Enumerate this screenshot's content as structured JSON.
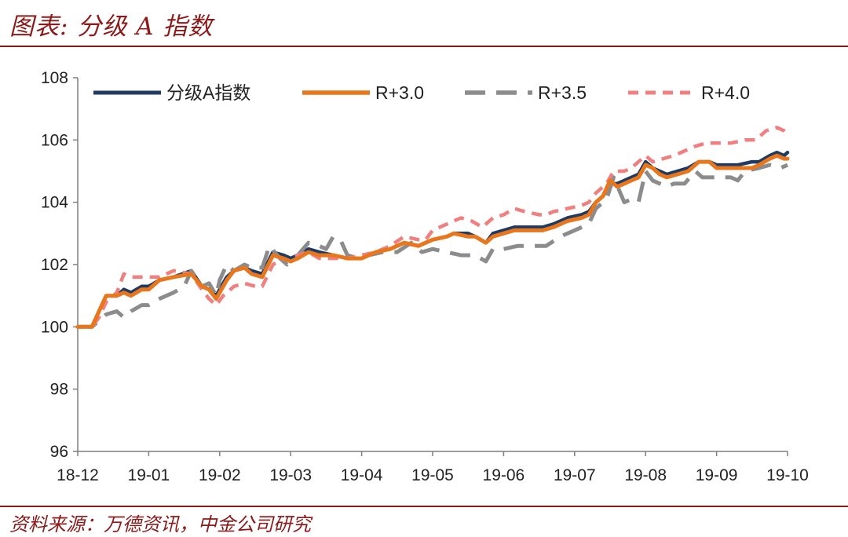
{
  "header": {
    "title": "图表: 分级 A 指数"
  },
  "footer": {
    "source": "资料来源：万德资讯，中金公司研究"
  },
  "chart_data": {
    "type": "line",
    "title": "",
    "xlabel": "",
    "ylabel": "",
    "ylim": [
      96,
      108
    ],
    "yticks": [
      96,
      98,
      100,
      102,
      104,
      106,
      108
    ],
    "xlim": [
      0,
      10
    ],
    "xtick_labels": [
      "18-12",
      "19-01",
      "19-02",
      "19-03",
      "19-04",
      "19-05",
      "19-06",
      "19-07",
      "19-08",
      "19-09",
      "19-10"
    ],
    "legend_position": "top",
    "series": [
      {
        "name": "分级A指数",
        "color": "#1f3b63",
        "style": "solid",
        "points": [
          [
            0,
            100
          ],
          [
            0.2,
            100
          ],
          [
            0.3,
            100.5
          ],
          [
            0.4,
            101
          ],
          [
            0.55,
            101
          ],
          [
            0.65,
            101.2
          ],
          [
            0.75,
            101.1
          ],
          [
            0.9,
            101.3
          ],
          [
            1.0,
            101.3
          ],
          [
            1.15,
            101.5
          ],
          [
            1.35,
            101.6
          ],
          [
            1.6,
            101.8
          ],
          [
            1.75,
            101.3
          ],
          [
            1.85,
            101.2
          ],
          [
            1.95,
            101
          ],
          [
            2.0,
            101.2
          ],
          [
            2.1,
            101.6
          ],
          [
            2.2,
            101.8
          ],
          [
            2.35,
            101.9
          ],
          [
            2.45,
            101.8
          ],
          [
            2.6,
            101.7
          ],
          [
            2.75,
            102.4
          ],
          [
            2.9,
            102.3
          ],
          [
            3.0,
            102.2
          ],
          [
            3.1,
            102.3
          ],
          [
            3.25,
            102.5
          ],
          [
            3.4,
            102.4
          ],
          [
            3.6,
            102.3
          ],
          [
            3.8,
            102.2
          ],
          [
            4.0,
            102.2
          ],
          [
            4.2,
            102.4
          ],
          [
            4.4,
            102.5
          ],
          [
            4.6,
            102.7
          ],
          [
            4.8,
            102.6
          ],
          [
            5.0,
            102.8
          ],
          [
            5.2,
            102.9
          ],
          [
            5.3,
            103.0
          ],
          [
            5.5,
            103.0
          ],
          [
            5.6,
            102.9
          ],
          [
            5.75,
            102.7
          ],
          [
            5.85,
            103.0
          ],
          [
            6.0,
            103.1
          ],
          [
            6.15,
            103.2
          ],
          [
            6.3,
            103.2
          ],
          [
            6.45,
            103.2
          ],
          [
            6.55,
            103.2
          ],
          [
            6.7,
            103.3
          ],
          [
            6.9,
            103.5
          ],
          [
            7.1,
            103.6
          ],
          [
            7.2,
            103.7
          ],
          [
            7.3,
            104.0
          ],
          [
            7.4,
            104.2
          ],
          [
            7.5,
            104.6
          ],
          [
            7.6,
            104.6
          ],
          [
            7.7,
            104.7
          ],
          [
            7.8,
            104.8
          ],
          [
            7.9,
            104.9
          ],
          [
            8.0,
            105.3
          ],
          [
            8.1,
            105.1
          ],
          [
            8.2,
            105.0
          ],
          [
            8.3,
            104.9
          ],
          [
            8.45,
            105.0
          ],
          [
            8.6,
            105.1
          ],
          [
            8.75,
            105.3
          ],
          [
            8.9,
            105.3
          ],
          [
            9.0,
            105.2
          ],
          [
            9.1,
            105.2
          ],
          [
            9.3,
            105.2
          ],
          [
            9.5,
            105.3
          ],
          [
            9.6,
            105.3
          ],
          [
            9.75,
            105.5
          ],
          [
            9.85,
            105.6
          ],
          [
            9.95,
            105.5
          ],
          [
            10.0,
            105.6
          ]
        ]
      },
      {
        "name": "R+3.0",
        "color": "#e8761c",
        "style": "solid",
        "points": [
          [
            0,
            100
          ],
          [
            0.2,
            100
          ],
          [
            0.3,
            100.5
          ],
          [
            0.4,
            101
          ],
          [
            0.55,
            101
          ],
          [
            0.65,
            101.1
          ],
          [
            0.75,
            101
          ],
          [
            0.9,
            101.2
          ],
          [
            1.0,
            101.2
          ],
          [
            1.15,
            101.5
          ],
          [
            1.35,
            101.6
          ],
          [
            1.6,
            101.7
          ],
          [
            1.75,
            101.3
          ],
          [
            1.85,
            101.2
          ],
          [
            1.95,
            100.9
          ],
          [
            2.0,
            101.1
          ],
          [
            2.1,
            101.5
          ],
          [
            2.2,
            101.8
          ],
          [
            2.35,
            101.9
          ],
          [
            2.45,
            101.7
          ],
          [
            2.6,
            101.6
          ],
          [
            2.75,
            102.3
          ],
          [
            2.9,
            102.2
          ],
          [
            3.0,
            102.1
          ],
          [
            3.1,
            102.2
          ],
          [
            3.25,
            102.4
          ],
          [
            3.4,
            102.3
          ],
          [
            3.6,
            102.3
          ],
          [
            3.8,
            102.2
          ],
          [
            4.0,
            102.2
          ],
          [
            4.2,
            102.4
          ],
          [
            4.4,
            102.5
          ],
          [
            4.6,
            102.7
          ],
          [
            4.8,
            102.6
          ],
          [
            5.0,
            102.8
          ],
          [
            5.2,
            102.9
          ],
          [
            5.3,
            103.0
          ],
          [
            5.5,
            102.9
          ],
          [
            5.6,
            102.9
          ],
          [
            5.75,
            102.7
          ],
          [
            5.85,
            102.9
          ],
          [
            6.0,
            103.0
          ],
          [
            6.15,
            103.1
          ],
          [
            6.3,
            103.1
          ],
          [
            6.45,
            103.1
          ],
          [
            6.55,
            103.1
          ],
          [
            6.7,
            103.2
          ],
          [
            6.9,
            103.4
          ],
          [
            7.1,
            103.5
          ],
          [
            7.2,
            103.6
          ],
          [
            7.3,
            104.0
          ],
          [
            7.4,
            104.2
          ],
          [
            7.5,
            104.7
          ],
          [
            7.6,
            104.5
          ],
          [
            7.7,
            104.6
          ],
          [
            7.8,
            104.7
          ],
          [
            7.9,
            104.8
          ],
          [
            8.0,
            105.2
          ],
          [
            8.1,
            105.1
          ],
          [
            8.2,
            104.9
          ],
          [
            8.3,
            104.8
          ],
          [
            8.45,
            104.9
          ],
          [
            8.6,
            105.0
          ],
          [
            8.75,
            105.3
          ],
          [
            8.9,
            105.3
          ],
          [
            9.0,
            105.1
          ],
          [
            9.1,
            105.1
          ],
          [
            9.3,
            105.1
          ],
          [
            9.5,
            105.1
          ],
          [
            9.6,
            105.2
          ],
          [
            9.75,
            105.4
          ],
          [
            9.85,
            105.5
          ],
          [
            9.95,
            105.4
          ],
          [
            10.0,
            105.4
          ]
        ]
      },
      {
        "name": "R+3.5",
        "color": "#8c8c8c",
        "style": "dashed-long",
        "points": [
          [
            0,
            100
          ],
          [
            0.2,
            100
          ],
          [
            0.3,
            100.2
          ],
          [
            0.4,
            100.4
          ],
          [
            0.55,
            100.5
          ],
          [
            0.65,
            100.3
          ],
          [
            0.75,
            100.5
          ],
          [
            0.9,
            100.7
          ],
          [
            1.0,
            100.7
          ],
          [
            1.15,
            100.9
          ],
          [
            1.35,
            101.1
          ],
          [
            1.5,
            101.3
          ],
          [
            1.6,
            101.8
          ],
          [
            1.75,
            101.3
          ],
          [
            1.85,
            101.4
          ],
          [
            1.95,
            101.0
          ],
          [
            2.0,
            101.5
          ],
          [
            2.1,
            102.0
          ],
          [
            2.2,
            101.8
          ],
          [
            2.35,
            102.0
          ],
          [
            2.45,
            101.9
          ],
          [
            2.6,
            101.9
          ],
          [
            2.7,
            102.6
          ],
          [
            2.85,
            102.2
          ],
          [
            2.95,
            102.0
          ],
          [
            3.1,
            102.3
          ],
          [
            3.25,
            102.7
          ],
          [
            3.4,
            102.6
          ],
          [
            3.5,
            102.5
          ],
          [
            3.6,
            102.9
          ],
          [
            3.7,
            102.8
          ],
          [
            3.8,
            102.3
          ],
          [
            3.95,
            102.2
          ],
          [
            4.1,
            102.3
          ],
          [
            4.3,
            102.4
          ],
          [
            4.5,
            102.4
          ],
          [
            4.7,
            102.7
          ],
          [
            4.85,
            102.4
          ],
          [
            5.0,
            102.5
          ],
          [
            5.2,
            102.4
          ],
          [
            5.4,
            102.3
          ],
          [
            5.6,
            102.3
          ],
          [
            5.75,
            102.1
          ],
          [
            5.85,
            102.5
          ],
          [
            6.0,
            102.5
          ],
          [
            6.2,
            102.6
          ],
          [
            6.4,
            102.6
          ],
          [
            6.6,
            102.6
          ],
          [
            6.8,
            102.9
          ],
          [
            7.0,
            103.1
          ],
          [
            7.2,
            103.3
          ],
          [
            7.3,
            103.8
          ],
          [
            7.45,
            104.1
          ],
          [
            7.55,
            104.8
          ],
          [
            7.7,
            104.0
          ],
          [
            7.8,
            104.1
          ],
          [
            7.9,
            104.0
          ],
          [
            8.0,
            105.0
          ],
          [
            8.1,
            104.7
          ],
          [
            8.2,
            104.6
          ],
          [
            8.3,
            104.5
          ],
          [
            8.4,
            104.6
          ],
          [
            8.55,
            104.6
          ],
          [
            8.7,
            105.0
          ],
          [
            8.8,
            104.8
          ],
          [
            9.0,
            104.8
          ],
          [
            9.2,
            104.8
          ],
          [
            9.3,
            104.7
          ],
          [
            9.4,
            105.0
          ],
          [
            9.6,
            105.1
          ],
          [
            9.75,
            105.2
          ],
          [
            9.9,
            105.1
          ],
          [
            10.0,
            105.2
          ]
        ]
      },
      {
        "name": "R+4.0",
        "color": "#f08080",
        "style": "dashed-short",
        "points": [
          [
            0,
            100
          ],
          [
            0.2,
            100
          ],
          [
            0.3,
            100.3
          ],
          [
            0.4,
            100.8
          ],
          [
            0.55,
            101.1
          ],
          [
            0.65,
            101.7
          ],
          [
            0.75,
            101.6
          ],
          [
            0.9,
            101.6
          ],
          [
            1.0,
            101.6
          ],
          [
            1.15,
            101.6
          ],
          [
            1.35,
            101.8
          ],
          [
            1.6,
            101.7
          ],
          [
            1.75,
            101.2
          ],
          [
            1.85,
            100.9
          ],
          [
            1.95,
            100.7
          ],
          [
            2.05,
            101.0
          ],
          [
            2.2,
            101.3
          ],
          [
            2.35,
            101.4
          ],
          [
            2.5,
            101.3
          ],
          [
            2.6,
            101.3
          ],
          [
            2.75,
            102.0
          ],
          [
            2.9,
            102.2
          ],
          [
            3.0,
            102.1
          ],
          [
            3.1,
            102.3
          ],
          [
            3.25,
            102.4
          ],
          [
            3.4,
            102.2
          ],
          [
            3.6,
            102.2
          ],
          [
            3.8,
            102.2
          ],
          [
            4.0,
            102.3
          ],
          [
            4.2,
            102.4
          ],
          [
            4.4,
            102.6
          ],
          [
            4.6,
            102.9
          ],
          [
            4.8,
            102.8
          ],
          [
            4.9,
            102.8
          ],
          [
            5.0,
            103.1
          ],
          [
            5.2,
            103.3
          ],
          [
            5.4,
            103.5
          ],
          [
            5.55,
            103.4
          ],
          [
            5.7,
            103.2
          ],
          [
            5.85,
            103.5
          ],
          [
            6.0,
            103.6
          ],
          [
            6.15,
            103.8
          ],
          [
            6.3,
            103.7
          ],
          [
            6.5,
            103.6
          ],
          [
            6.6,
            103.6
          ],
          [
            6.7,
            103.7
          ],
          [
            6.9,
            103.8
          ],
          [
            7.1,
            103.9
          ],
          [
            7.2,
            104.0
          ],
          [
            7.3,
            104.3
          ],
          [
            7.45,
            104.6
          ],
          [
            7.55,
            105.0
          ],
          [
            7.7,
            105.0
          ],
          [
            7.8,
            105.1
          ],
          [
            7.9,
            105.3
          ],
          [
            8.0,
            105.5
          ],
          [
            8.1,
            105.3
          ],
          [
            8.25,
            105.4
          ],
          [
            8.4,
            105.5
          ],
          [
            8.5,
            105.6
          ],
          [
            8.7,
            105.8
          ],
          [
            8.85,
            105.9
          ],
          [
            9.0,
            105.9
          ],
          [
            9.2,
            105.9
          ],
          [
            9.4,
            106.0
          ],
          [
            9.55,
            106.0
          ],
          [
            9.7,
            106.3
          ],
          [
            9.85,
            106.4
          ],
          [
            9.95,
            106.3
          ],
          [
            10.0,
            106.2
          ]
        ]
      }
    ]
  }
}
